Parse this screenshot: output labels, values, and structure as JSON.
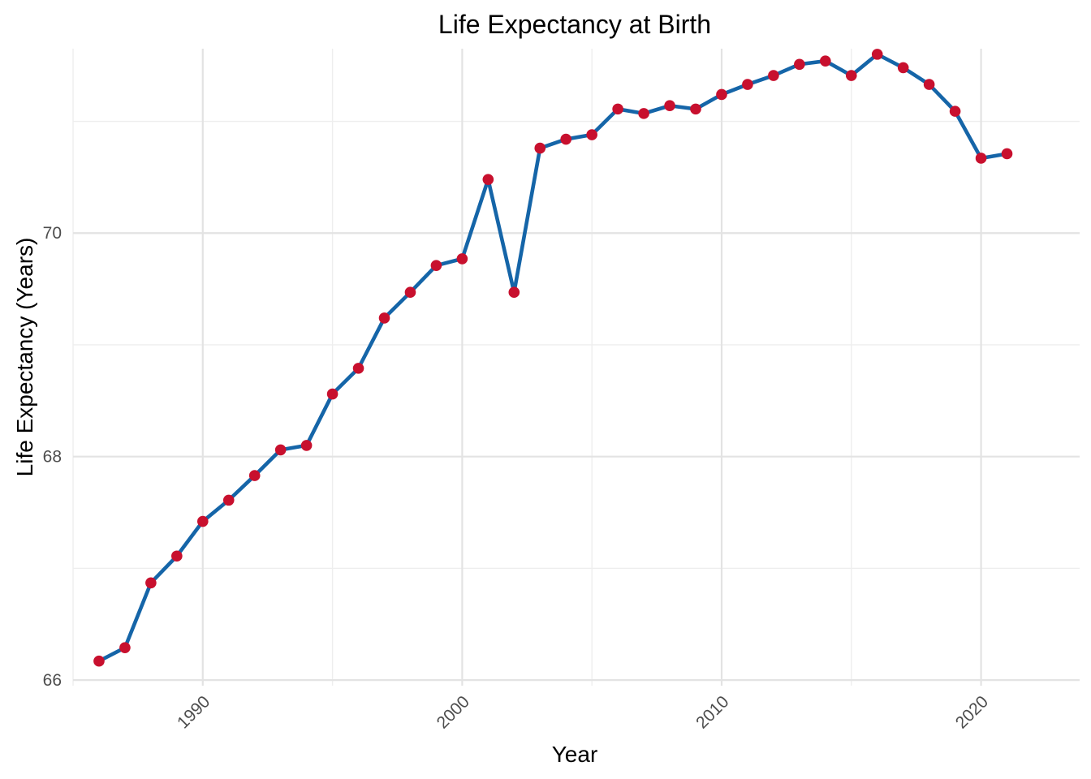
{
  "chart_data": {
    "type": "line",
    "title": "Life Expectancy at Birth",
    "xlabel": "Year",
    "ylabel": "Life Expectancy (Years)",
    "xlim": [
      1985,
      2023.8
    ],
    "ylim": [
      65.95,
      71.65
    ],
    "x_ticks": [
      1990,
      2000,
      2010,
      2020
    ],
    "x_minor_ticks": [
      1985,
      1995,
      2005,
      2015
    ],
    "y_ticks": [
      66,
      68,
      70
    ],
    "y_minor_ticks": [
      67,
      69,
      71
    ],
    "grid": true,
    "legend": "none",
    "x_tick_rotation_deg": 45,
    "colors": {
      "line": "#1565a8",
      "points": "#c8102e",
      "grid_major": "#e3e3e3",
      "grid_minor": "#eeeeee"
    },
    "series": [
      {
        "x": [
          1986,
          1987,
          1988,
          1989,
          1990,
          1991,
          1992,
          1993,
          1994,
          1995,
          1996,
          1997,
          1998,
          1999,
          2000,
          2001,
          2002,
          2003,
          2004,
          2005,
          2006,
          2007,
          2008,
          2009,
          2010,
          2011,
          2012,
          2013,
          2014,
          2015,
          2016,
          2017,
          2018,
          2019,
          2020,
          2021
        ],
        "values": [
          66.17,
          66.29,
          66.87,
          67.11,
          67.42,
          67.61,
          67.83,
          68.06,
          68.1,
          68.56,
          68.79,
          69.24,
          69.47,
          69.71,
          69.77,
          70.48,
          69.47,
          70.76,
          70.84,
          70.88,
          71.11,
          71.07,
          71.14,
          71.11,
          71.24,
          71.33,
          71.41,
          71.51,
          71.54,
          71.41,
          71.6,
          71.48,
          71.33,
          71.09,
          70.67,
          70.71
        ]
      }
    ]
  }
}
